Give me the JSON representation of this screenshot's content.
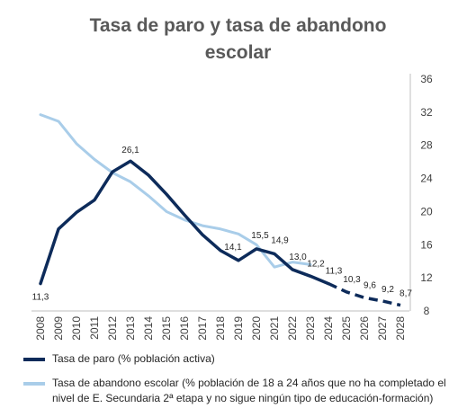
{
  "chart_data": {
    "type": "line",
    "title_lines": [
      "Tasa de paro y tasa de abandono",
      "escolar"
    ],
    "x": [
      2008,
      2009,
      2010,
      2011,
      2012,
      2013,
      2014,
      2015,
      2016,
      2017,
      2018,
      2019,
      2020,
      2021,
      2022,
      2023,
      2024,
      2025,
      2026,
      2027,
      2028
    ],
    "x_tick_labels": [
      "2008",
      "2009",
      "2010",
      "2011",
      "2012",
      "2013",
      "2014",
      "2015",
      "2016",
      "2017",
      "2018",
      "2019",
      "2020",
      "2021",
      "2022",
      "2023",
      "2024",
      "2025",
      "2026",
      "2027",
      "2028"
    ],
    "ylim": [
      8,
      36
    ],
    "y_ticks": [
      8,
      12,
      16,
      20,
      24,
      28,
      32,
      36
    ],
    "y_axis_side": "right",
    "grid": false,
    "legend_position": "bottom",
    "series": [
      {
        "name": "Tasa de paro (% población activa)",
        "color": "#0d2b5a",
        "values": [
          11.3,
          17.9,
          19.9,
          21.4,
          24.8,
          26.1,
          24.4,
          22.1,
          19.6,
          17.2,
          15.3,
          14.1,
          15.5,
          14.9,
          13.0,
          12.2,
          11.3,
          10.3,
          9.6,
          9.2,
          8.7
        ],
        "dashed_from": 2024,
        "data_labels": [
          {
            "x": 2008,
            "label": "11,3"
          },
          {
            "x": 2013,
            "label": "26,1"
          },
          {
            "x": 2019,
            "label": "14,1"
          },
          {
            "x": 2020,
            "label": "15,5"
          },
          {
            "x": 2021,
            "label": "14,9"
          },
          {
            "x": 2022,
            "label": "13,0"
          },
          {
            "x": 2023,
            "label": "12,2"
          },
          {
            "x": 2024,
            "label": "11,3"
          },
          {
            "x": 2025,
            "label": "10,3"
          },
          {
            "x": 2026,
            "label": "9,6"
          },
          {
            "x": 2027,
            "label": "9,2"
          },
          {
            "x": 2028,
            "label": "8,7"
          }
        ]
      },
      {
        "name": "Tasa de abandono escolar (% población de 18 a 24 años que no ha completado el nivel de E. Secundaria 2ª etapa y no sigue ningún tipo de educación-formación)",
        "color": "#a9cde9",
        "values": [
          31.7,
          30.9,
          28.2,
          26.3,
          24.7,
          23.6,
          21.9,
          20.0,
          19.0,
          18.3,
          17.9,
          17.3,
          16.0,
          13.3,
          13.9,
          13.6,
          null,
          null,
          null,
          null,
          null
        ]
      }
    ]
  }
}
